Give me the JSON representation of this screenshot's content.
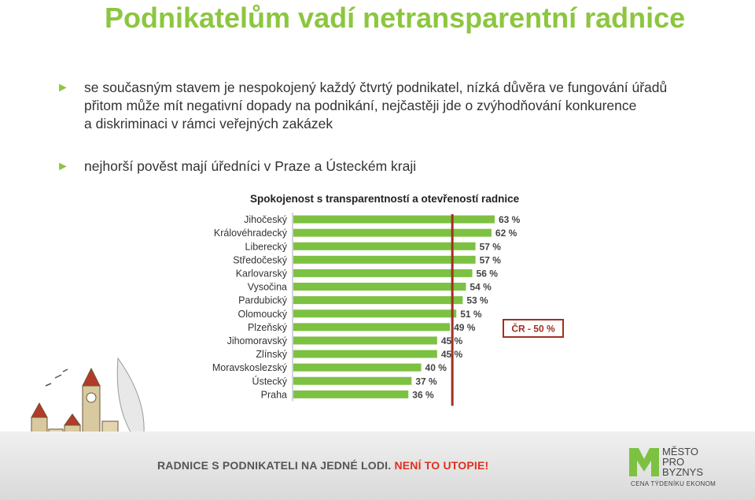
{
  "title": "Podnikatelům vadí netransparentní radnice",
  "bullets": [
    {
      "lines": [
        "se současným stavem je nespokojený každý čtvrtý podnikatel, nízká důvěra ve fungování  úřadů",
        "přitom může mít negativní dopady na podnikání, nejčastěji jde o zvýhodňování konkurence",
        "a diskriminaci v rámci veřejných zakázek"
      ]
    },
    {
      "lines": [
        "nejhorší pověst mají úředníci v Praze a Ústeckém kraji"
      ]
    }
  ],
  "chart_data": {
    "type": "bar",
    "orientation": "horizontal",
    "title": "Spokojenost s transparentností a otevřeností radnice",
    "categories": [
      "Jihočeský",
      "Královéhradecký",
      "Liberecký",
      "Středočeský",
      "Karlovarský",
      "Vysočina",
      "Pardubický",
      "Olomoucký",
      "Plzeňský",
      "Jihomoravský",
      "Zlínský",
      "Moravskoslezský",
      "Ústecký",
      "Praha"
    ],
    "values": [
      63,
      62,
      57,
      57,
      56,
      54,
      53,
      51,
      49,
      45,
      45,
      40,
      37,
      36
    ],
    "unit": "%",
    "bar_color": "#7dc142",
    "reference_line": {
      "value": 50,
      "label": "ČR - 50 %",
      "color": "#a03020"
    }
  },
  "footer": {
    "slogan_main": "RADNICE S PODNIKATELI NA JEDNÉ LODI.",
    "slogan_accent": "NENÍ TO UTOPIE!",
    "logo_lines": [
      "MĚSTO",
      "PRO",
      "BYZNYS"
    ],
    "logo_sub": "CENA TÝDENÍKU EKONOM",
    "logo_color": "#7dc142",
    "accent_color": "#e0301e"
  }
}
